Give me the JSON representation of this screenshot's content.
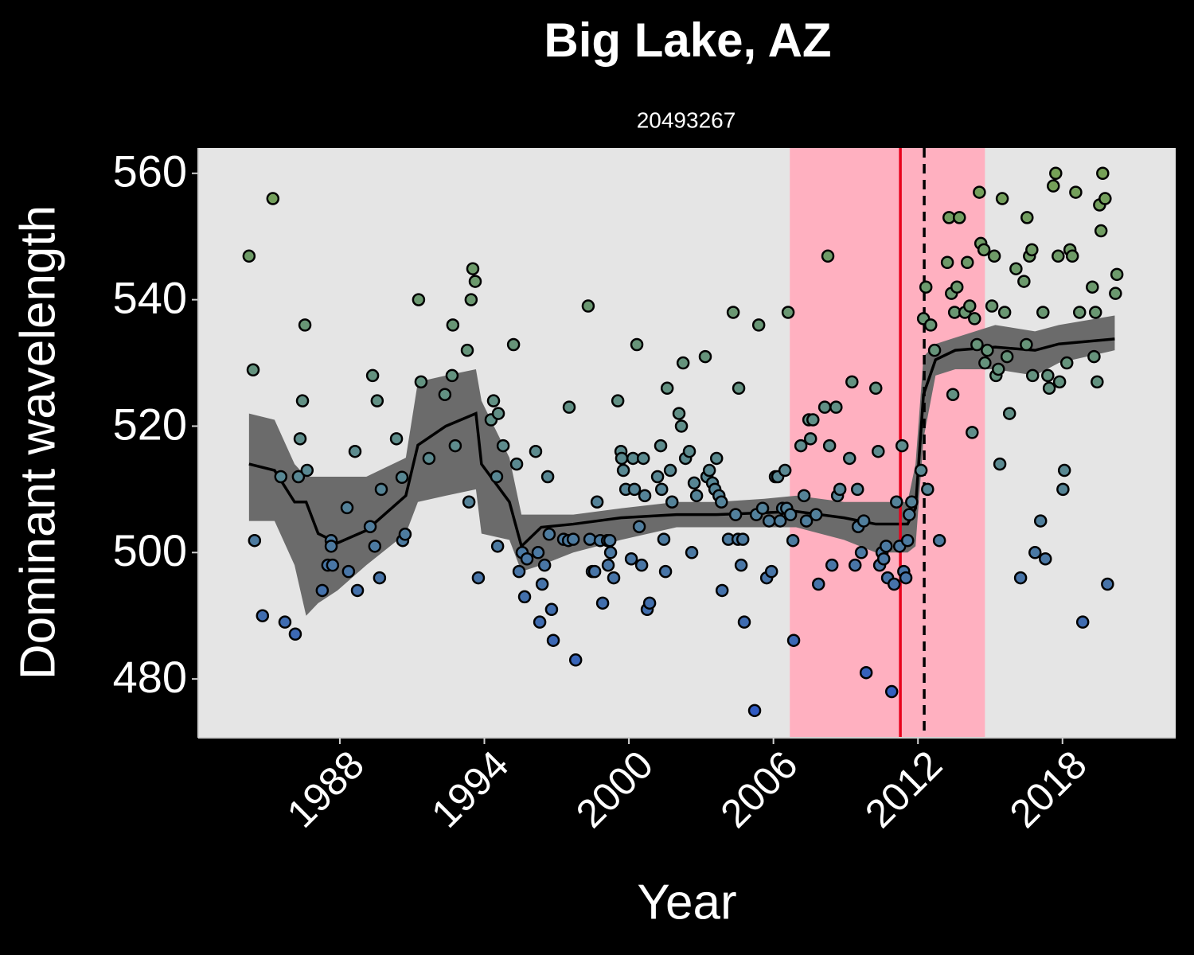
{
  "chart_data": {
    "type": "scatter",
    "title": "Big Lake, AZ",
    "subtitle": "20493267",
    "x_label": "Year",
    "y_label": "Dominant wavelength",
    "xlim": [
      1982.12,
      2022.7
    ],
    "ylim": [
      470.7,
      564.0
    ],
    "xticks": [
      1988,
      1994,
      2000,
      2006,
      2012,
      2018
    ],
    "yticks": [
      480,
      500,
      520,
      540,
      560
    ],
    "panel_color": "#e5e5e5",
    "point_colors": [
      "#2b56c9",
      "#5e8d8c",
      "#78a352"
    ],
    "shaded_region": {
      "xlim": [
        2006.68,
        2014.78
      ],
      "color": "#ffb0c0"
    },
    "vlines": [
      {
        "x": 2011.27,
        "color": "#e8001c",
        "style": "solid"
      },
      {
        "x": 2012.26,
        "color": "#000000",
        "style": "dashed"
      }
    ],
    "trend": {
      "color": "#000000",
      "ribbon_color": "#6b6b6b",
      "x": [
        1984.23,
        1985.29,
        1986.12,
        1986.6,
        1987.1,
        1987.9,
        1989.1,
        1990.74,
        1991.24,
        1992.4,
        1993.65,
        1993.88,
        1995.04,
        1995.54,
        1996.36,
        1997.69,
        1999.67,
        2001.98,
        2003.64,
        2005.62,
        2006.94,
        2008.93,
        2010.25,
        2011.57,
        2011.9,
        2012.23,
        2012.73,
        2013.55,
        2015.21,
        2016.86,
        2017.85,
        2020.17
      ],
      "values": [
        514,
        513,
        508,
        508,
        503,
        501.5,
        503.5,
        509,
        517,
        520,
        522,
        514,
        508,
        501,
        504,
        504.5,
        505.5,
        506,
        506,
        506.3,
        506.5,
        505.5,
        504.5,
        504.5,
        507,
        525,
        530.5,
        532,
        532.5,
        532,
        533,
        533.8
      ],
      "lower": [
        505,
        505,
        498,
        490,
        492,
        494,
        498,
        503,
        508,
        509,
        510,
        503,
        502,
        497,
        498,
        500,
        502,
        504,
        504,
        504,
        504,
        502,
        500,
        500,
        501,
        518,
        528,
        529,
        529,
        528,
        530,
        532
      ],
      "upper": [
        522,
        521,
        514,
        512,
        512,
        512,
        512,
        515,
        527,
        528,
        529,
        524,
        515,
        506,
        506,
        506,
        507,
        508,
        508,
        508.5,
        509,
        508,
        508,
        508,
        514,
        531,
        533,
        534,
        536,
        535,
        536,
        537.5
      ]
    },
    "x": [
      1984.23,
      1984.4,
      1984.46,
      1984.79,
      1985.22,
      1985.55,
      1985.72,
      1986.15,
      1986.28,
      1986.35,
      1986.45,
      1986.55,
      1986.64,
      1987.27,
      1987.5,
      1987.64,
      1987.64,
      1987.7,
      1988.3,
      1988.36,
      1988.63,
      1988.73,
      1989.26,
      1989.36,
      1989.45,
      1989.55,
      1989.65,
      1989.72,
      1990.35,
      1990.58,
      1990.61,
      1990.71,
      1991.27,
      1991.37,
      1991.7,
      1992.36,
      1992.66,
      1992.69,
      1992.79,
      1993.29,
      1993.36,
      1993.45,
      1993.52,
      1993.62,
      1993.75,
      1994.28,
      1994.38,
      1994.51,
      1994.55,
      1994.58,
      1994.78,
      1995.21,
      1995.34,
      1995.44,
      1995.57,
      1995.67,
      1995.77,
      1996.13,
      1996.23,
      1996.3,
      1996.4,
      1996.5,
      1996.63,
      1996.69,
      1996.79,
      1996.86,
      1997.29,
      1997.49,
      1997.52,
      1997.69,
      1997.79,
      1998.31,
      1998.38,
      1998.48,
      1998.58,
      1998.68,
      1998.81,
      1998.91,
      1999.11,
      1999.14,
      1999.21,
      1999.24,
      1999.37,
      1999.54,
      1999.67,
      1999.7,
      1999.77,
      1999.87,
      2000.1,
      2000.17,
      2000.23,
      2000.33,
      2000.43,
      2000.53,
      2000.6,
      2000.66,
      2000.76,
      2000.86,
      2001.19,
      2001.32,
      2001.36,
      2001.45,
      2001.52,
      2001.59,
      2001.72,
      2001.79,
      2002.08,
      2002.18,
      2002.25,
      2002.35,
      2002.51,
      2002.61,
      2002.71,
      2002.81,
      2003.17,
      2003.24,
      2003.34,
      2003.47,
      2003.57,
      2003.64,
      2003.74,
      2003.84,
      2003.87,
      2004.13,
      2004.33,
      2004.43,
      2004.53,
      2004.56,
      2004.66,
      2004.73,
      2004.79,
      2005.22,
      2005.29,
      2005.39,
      2005.55,
      2005.72,
      2005.82,
      2005.92,
      2006.08,
      2006.18,
      2006.28,
      2006.38,
      2006.48,
      2006.55,
      2006.61,
      2006.71,
      2006.81,
      2006.84,
      2007.14,
      2007.27,
      2007.37,
      2007.47,
      2007.54,
      2007.64,
      2007.77,
      2007.87,
      2008.13,
      2008.26,
      2008.33,
      2008.43,
      2008.6,
      2008.66,
      2008.76,
      2009.16,
      2009.26,
      2009.39,
      2009.49,
      2009.52,
      2009.65,
      2009.75,
      2009.85,
      2010.25,
      2010.35,
      2010.41,
      2010.51,
      2010.58,
      2010.68,
      2010.74,
      2010.91,
      2011.01,
      2011.11,
      2011.24,
      2011.34,
      2011.41,
      2011.5,
      2011.57,
      2011.64,
      2011.74,
      2012.13,
      2012.23,
      2012.33,
      2012.4,
      2012.53,
      2012.69,
      2012.89,
      2013.22,
      2013.29,
      2013.39,
      2013.45,
      2013.52,
      2013.62,
      2013.72,
      2013.95,
      2014.05,
      2014.15,
      2014.25,
      2014.35,
      2014.45,
      2014.55,
      2014.61,
      2014.74,
      2014.78,
      2014.88,
      2015.07,
      2015.17,
      2015.24,
      2015.34,
      2015.4,
      2015.5,
      2015.6,
      2015.7,
      2015.8,
      2016.07,
      2016.26,
      2016.4,
      2016.5,
      2016.53,
      2016.63,
      2016.73,
      2016.76,
      2016.86,
      2017.09,
      2017.19,
      2017.29,
      2017.39,
      2017.45,
      2017.62,
      2017.72,
      2017.82,
      2017.88,
      2018.02,
      2018.08,
      2018.18,
      2018.31,
      2018.41,
      2018.55,
      2018.71,
      2018.84,
      2019.24,
      2019.31,
      2019.37,
      2019.44,
      2019.54,
      2019.6,
      2019.67,
      2019.77,
      2019.87,
      2020.2,
      2020.26
    ],
    "values": [
      546.9,
      528.9,
      501.9,
      490,
      556,
      512,
      489,
      487.1,
      512,
      518,
      524,
      536,
      513,
      494,
      498,
      501.9,
      501,
      498,
      507.1,
      497,
      516,
      494,
      504.1,
      528,
      501,
      524,
      496,
      510,
      518,
      511.9,
      501.9,
      502.9,
      540,
      527,
      514.9,
      525,
      528,
      536,
      516.9,
      532,
      508,
      540,
      544.9,
      542.9,
      496,
      521,
      524,
      512,
      501,
      522,
      516.9,
      532.9,
      514,
      497,
      500,
      493,
      499,
      516,
      500,
      489,
      495,
      498,
      512,
      502.9,
      491,
      486.1,
      502.1,
      501.9,
      523,
      502.1,
      483,
      539,
      502.1,
      497,
      497,
      508,
      501.9,
      492,
      501.9,
      498,
      501.9,
      500,
      496,
      524,
      516,
      514.9,
      513,
      510,
      499,
      514.9,
      510,
      532.9,
      504.1,
      498,
      514.9,
      509,
      491,
      492,
      512,
      516.9,
      510,
      502.1,
      497,
      526,
      513,
      508,
      522,
      520,
      530,
      514.9,
      516,
      500,
      511,
      509,
      531,
      512,
      513,
      511,
      510,
      514.9,
      509,
      508,
      494,
      502.1,
      538,
      506,
      502.1,
      526,
      498,
      502.1,
      489,
      475,
      506,
      536,
      507,
      496,
      505,
      497,
      512,
      512,
      505,
      507,
      513,
      507,
      538,
      506,
      501.9,
      486.1,
      516.9,
      509,
      505,
      521,
      518,
      521,
      506,
      495,
      523,
      546.9,
      516.9,
      498,
      523,
      509,
      510,
      514.9,
      527,
      498,
      510,
      504.1,
      500,
      505,
      481,
      526,
      516,
      498,
      500,
      499,
      501,
      496,
      478,
      495,
      508,
      501,
      516.9,
      497,
      496,
      501.9,
      506,
      508,
      513,
      537,
      542,
      510,
      536,
      532,
      501.9,
      545.9,
      553,
      541,
      525,
      538,
      542,
      553,
      538,
      545.9,
      539,
      519,
      537,
      532.9,
      557,
      548.9,
      547.9,
      530,
      532,
      539,
      546.9,
      528,
      529,
      514,
      556,
      538,
      531,
      522,
      544.9,
      496,
      542.9,
      532.9,
      553,
      546.9,
      547.9,
      528,
      500,
      505,
      538,
      499,
      528,
      526,
      558,
      560,
      546.9,
      527,
      510,
      513,
      530,
      547.9,
      546.9,
      557,
      538,
      489,
      542,
      531,
      538,
      527,
      555,
      550.9,
      560,
      556,
      495,
      541,
      544
    ]
  }
}
